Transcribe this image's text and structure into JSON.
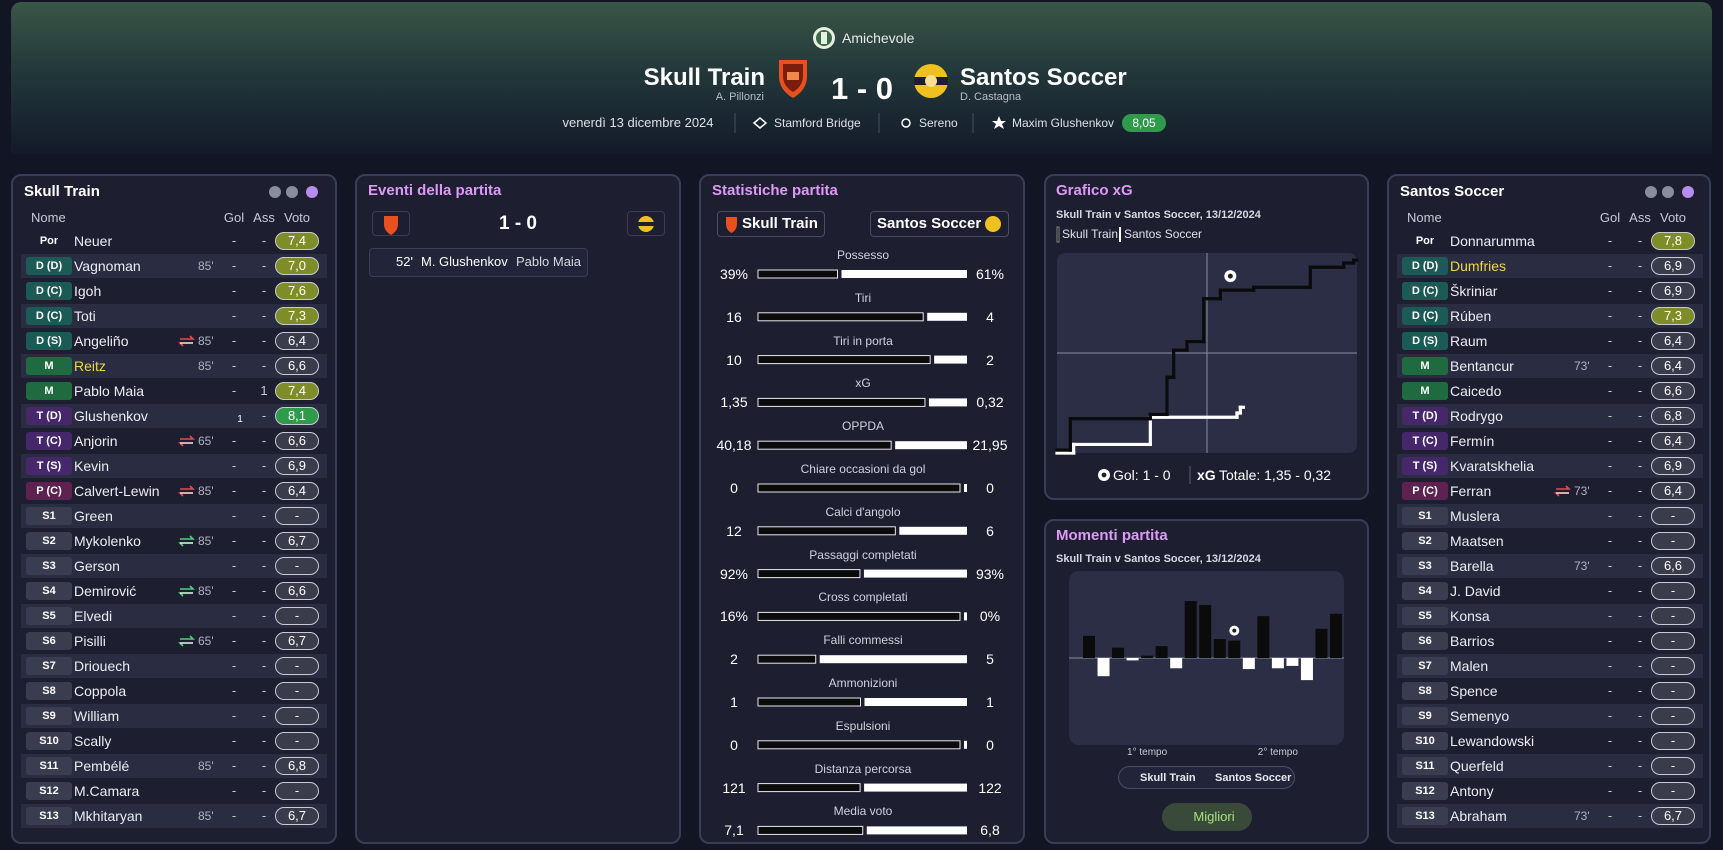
{
  "header": {
    "competition": "Amichevole",
    "home": {
      "name": "Skull Train",
      "manager": "A. Pillonzi"
    },
    "score": "1 - 0",
    "away": {
      "name": "Santos Soccer",
      "manager": "D. Castagna"
    },
    "date": "venerdì 13 dicembre 2024",
    "stadium": "Stamford Bridge",
    "weather": "Sereno",
    "motm": "Maxim Glushenkov",
    "motm_rating": "8,05"
  },
  "lineups": {
    "columns": [
      "Nome",
      "Gol",
      "Ass",
      "Voto"
    ],
    "home": {
      "team": "Skull Train",
      "players": [
        {
          "pos": "Por",
          "name": "Neuer",
          "gol": "-",
          "ass": "-",
          "voto": "7,4"
        },
        {
          "pos": "D (D)",
          "name": "Vagnoman",
          "sub": "85'",
          "gol": "-",
          "ass": "-",
          "voto": "7,0"
        },
        {
          "pos": "D (C)",
          "name": "Igoh",
          "gol": "-",
          "ass": "-",
          "voto": "7,6"
        },
        {
          "pos": "D (C)",
          "name": "Toti",
          "gol": "-",
          "ass": "-",
          "voto": "7,3"
        },
        {
          "pos": "D (S)",
          "name": "Angeliño",
          "sub": "85'",
          "gol": "-",
          "ass": "-",
          "voto": "6,4"
        },
        {
          "pos": "M",
          "name": "Reitz",
          "sub": "85'",
          "gol": "-",
          "ass": "-",
          "voto": "6,6",
          "highlight": true
        },
        {
          "pos": "M",
          "name": "Pablo Maia",
          "gol": "-",
          "ass": "1",
          "voto": "7,4"
        },
        {
          "pos": "T (D)",
          "name": "Glushenkov",
          "gol": "1",
          "ass": "-",
          "voto": "8,1"
        },
        {
          "pos": "T (C)",
          "name": "Anjorin",
          "sub": "65'",
          "gol": "-",
          "ass": "-",
          "voto": "6,6"
        },
        {
          "pos": "T (S)",
          "name": "Kevin",
          "gol": "-",
          "ass": "-",
          "voto": "6,9"
        },
        {
          "pos": "P (C)",
          "name": "Calvert-Lewin",
          "sub": "85'",
          "gol": "-",
          "ass": "-",
          "voto": "6,4"
        },
        {
          "pos": "S1",
          "name": "Green",
          "gol": "-",
          "ass": "-",
          "voto": "-"
        },
        {
          "pos": "S2",
          "name": "Mykolenko",
          "sub": "85'",
          "gol": "-",
          "ass": "-",
          "voto": "6,7"
        },
        {
          "pos": "S3",
          "name": "Gerson",
          "gol": "-",
          "ass": "-",
          "voto": "-"
        },
        {
          "pos": "S4",
          "name": "Demirović",
          "sub": "85'",
          "gol": "-",
          "ass": "-",
          "voto": "6,6"
        },
        {
          "pos": "S5",
          "name": "Elvedi",
          "gol": "-",
          "ass": "-",
          "voto": "-"
        },
        {
          "pos": "S6",
          "name": "Pisilli",
          "sub": "65'",
          "gol": "-",
          "ass": "-",
          "voto": "6,7"
        },
        {
          "pos": "S7",
          "name": "Driouech",
          "gol": "-",
          "ass": "-",
          "voto": "-"
        },
        {
          "pos": "S8",
          "name": "Coppola",
          "gol": "-",
          "ass": "-",
          "voto": "-"
        },
        {
          "pos": "S9",
          "name": "William",
          "gol": "-",
          "ass": "-",
          "voto": "-"
        },
        {
          "pos": "S10",
          "name": "Scally",
          "gol": "-",
          "ass": "-",
          "voto": "-"
        },
        {
          "pos": "S11",
          "name": "Pembélé",
          "sub": "85'",
          "gol": "-",
          "ass": "-",
          "voto": "6,8"
        },
        {
          "pos": "S12",
          "name": "M.Camara",
          "gol": "-",
          "ass": "-",
          "voto": "-"
        },
        {
          "pos": "S13",
          "name": "Mkhitaryan",
          "sub": "85'",
          "gol": "-",
          "ass": "-",
          "voto": "6,7"
        }
      ]
    },
    "away": {
      "team": "Santos Soccer",
      "players": [
        {
          "pos": "Por",
          "name": "Donnarumma",
          "gol": "-",
          "ass": "-",
          "voto": "7,8"
        },
        {
          "pos": "D (D)",
          "name": "Dumfries",
          "gol": "-",
          "ass": "-",
          "voto": "6,9",
          "highlight": true
        },
        {
          "pos": "D (C)",
          "name": "Škriniar",
          "gol": "-",
          "ass": "-",
          "voto": "6,9"
        },
        {
          "pos": "D (C)",
          "name": "Rúben",
          "gol": "-",
          "ass": "-",
          "voto": "7,3"
        },
        {
          "pos": "D (S)",
          "name": "Raum",
          "gol": "-",
          "ass": "-",
          "voto": "6,4"
        },
        {
          "pos": "M",
          "name": "Bentancur",
          "sub": "73'",
          "gol": "-",
          "ass": "-",
          "voto": "6,4"
        },
        {
          "pos": "M",
          "name": "Caicedo",
          "gol": "-",
          "ass": "-",
          "voto": "6,6"
        },
        {
          "pos": "T (D)",
          "name": "Rodrygo",
          "gol": "-",
          "ass": "-",
          "voto": "6,8"
        },
        {
          "pos": "T (C)",
          "name": "Fermín",
          "gol": "-",
          "ass": "-",
          "voto": "6,4"
        },
        {
          "pos": "T (S)",
          "name": "Kvaratskhelia",
          "gol": "-",
          "ass": "-",
          "voto": "6,9"
        },
        {
          "pos": "P (C)",
          "name": "Ferran",
          "sub": "73'",
          "gol": "-",
          "ass": "-",
          "voto": "6,4"
        },
        {
          "pos": "S1",
          "name": "Muslera",
          "gol": "-",
          "ass": "-",
          "voto": "-"
        },
        {
          "pos": "S2",
          "name": "Maatsen",
          "gol": "-",
          "ass": "-",
          "voto": "-"
        },
        {
          "pos": "S3",
          "name": "Barella",
          "sub": "73'",
          "gol": "-",
          "ass": "-",
          "voto": "6,6"
        },
        {
          "pos": "S4",
          "name": "J. David",
          "gol": "-",
          "ass": "-",
          "voto": "-"
        },
        {
          "pos": "S5",
          "name": "Konsa",
          "gol": "-",
          "ass": "-",
          "voto": "-"
        },
        {
          "pos": "S6",
          "name": "Barrios",
          "gol": "-",
          "ass": "-",
          "voto": "-"
        },
        {
          "pos": "S7",
          "name": "Malen",
          "gol": "-",
          "ass": "-",
          "voto": "-"
        },
        {
          "pos": "S8",
          "name": "Spence",
          "gol": "-",
          "ass": "-",
          "voto": "-"
        },
        {
          "pos": "S9",
          "name": "Semenyo",
          "gol": "-",
          "ass": "-",
          "voto": "-"
        },
        {
          "pos": "S10",
          "name": "Lewandowski",
          "gol": "-",
          "ass": "-",
          "voto": "-"
        },
        {
          "pos": "S11",
          "name": "Querfeld",
          "gol": "-",
          "ass": "-",
          "voto": "-"
        },
        {
          "pos": "S12",
          "name": "Antony",
          "gol": "-",
          "ass": "-",
          "voto": "-"
        },
        {
          "pos": "S13",
          "name": "Abraham",
          "sub": "73'",
          "gol": "-",
          "ass": "-",
          "voto": "6,7"
        }
      ]
    }
  },
  "events": {
    "title": "Eventi della partita",
    "score": "1 - 0",
    "items": [
      {
        "minute": "52'",
        "scorer": "M. Glushenkov",
        "assist": "Pablo Maia"
      }
    ]
  },
  "stats": {
    "title": "Statistiche partita",
    "home": "Skull Train",
    "away": "Santos Soccer",
    "rows": [
      {
        "name": "Possesso",
        "home": {
          "value": 39,
          "label": "39%"
        },
        "away": {
          "value": 61,
          "label": "61%"
        }
      },
      {
        "name": "Tiri",
        "home": 16,
        "away": 4
      },
      {
        "name": "Tiri in porta",
        "home": 10,
        "away": 2
      },
      {
        "name": "xG",
        "home": {
          "value": 1.35,
          "label": "1,35"
        },
        "away": {
          "value": 0.32,
          "label": "0,32"
        }
      },
      {
        "name": "OPPDA",
        "home": {
          "value": 40.18,
          "label": "40,18"
        },
        "away": {
          "value": 21.95,
          "label": "21,95"
        }
      },
      {
        "name": "Chiare occasioni da gol",
        "home": 0,
        "away": 0
      },
      {
        "name": "Calci d'angolo",
        "home": 12,
        "away": 6
      },
      {
        "name": "Passaggi completati",
        "home": {
          "value": 92,
          "label": "92%"
        },
        "away": {
          "value": 93,
          "label": "93%"
        }
      },
      {
        "name": "Cross completati",
        "home": {
          "value": 16,
          "label": "16%"
        },
        "away": {
          "value": 0,
          "label": "0%"
        }
      },
      {
        "name": "Falli commessi",
        "home": 2,
        "away": 5
      },
      {
        "name": "Ammonizioni",
        "home": 1,
        "away": 1
      },
      {
        "name": "Espulsioni",
        "home": 0,
        "away": 0
      },
      {
        "name": "Distanza percorsa",
        "home": 121,
        "away": 122
      },
      {
        "name": "Media voto",
        "home": {
          "value": 7.1,
          "label": "7,1"
        },
        "away": {
          "value": 6.8,
          "label": "6,8"
        }
      }
    ]
  },
  "xg_chart": {
    "type": "step",
    "title": "Grafico xG",
    "subtitle": "Skull Train v Santos Soccer, 13/12/2024",
    "series": [
      {
        "name": "Skull Train",
        "color": "#0b0b0b",
        "x": [
          0,
          4,
          28,
          33,
          35,
          39,
          44,
          49,
          59,
          76,
          86,
          89
        ],
        "values": [
          0.02,
          0.24,
          0.27,
          0.53,
          0.72,
          0.78,
          1.08,
          1.14,
          1.16,
          1.3,
          1.33,
          1.35
        ]
      },
      {
        "name": "Santos Soccer",
        "color": "#ffffff",
        "x": [
          0,
          5,
          28,
          54,
          55
        ],
        "values": [
          0,
          0.06,
          0.25,
          0.28,
          0.32
        ]
      }
    ],
    "xlim": [
      0,
      90
    ],
    "ylim": [
      0,
      1.4
    ],
    "xticks": [
      45
    ],
    "yticks": [
      0.7
    ],
    "goals": [
      52
    ],
    "goal_text": "Gol: 1 - 0",
    "xg_label": "xG",
    "total_text": "Totale: 1,35 - 0,32"
  },
  "momentum_chart": {
    "type": "bar",
    "title": "Momenti partita",
    "subtitle": "Skull Train v Santos Soccer, 13/12/2024",
    "values": [
      28,
      -23,
      13,
      -3,
      3,
      15,
      -13,
      72,
      67,
      24,
      22,
      -14,
      53,
      -13,
      -10,
      -28,
      37,
      56
    ],
    "ylim": [
      -100,
      100
    ],
    "halves": [
      "1° tempo",
      "2° tempo"
    ],
    "legend": [
      "Skull Train",
      "Santos Soccer"
    ],
    "colors": [
      "#0b0b0b",
      "#ffffff"
    ],
    "button": "Migliori"
  }
}
